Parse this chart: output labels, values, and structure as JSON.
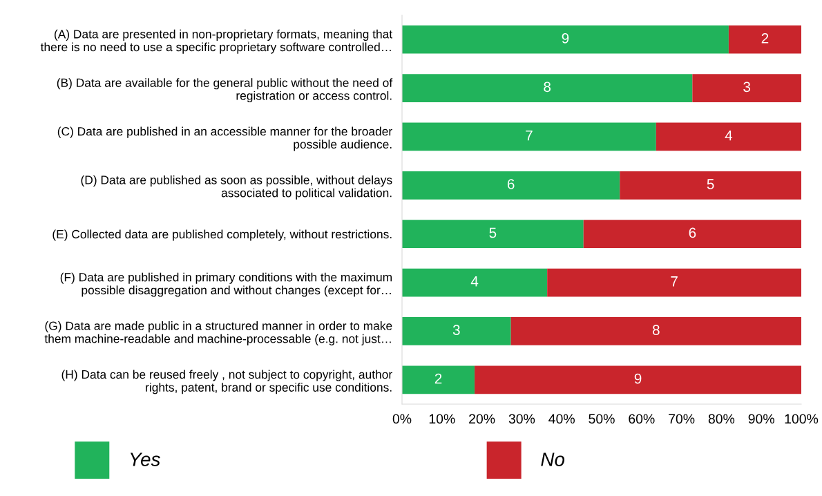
{
  "chart_data": {
    "type": "bar",
    "orientation": "horizontal",
    "stacked": true,
    "categories": [
      "(A) Data are presented in non-proprietary formats, meaning that\nthere is no need to use a specific proprietary software controlled…",
      "(B) Data are available for the general public without the need of\nregistration or access control.",
      "(C) Data are published in an accessible manner for the broader\npossible audience.",
      "(D) Data are published as soon as possible, without delays\nassociated to political validation.",
      "(E) Collected data are published completely, without restrictions.",
      "(F) Data are published in primary conditions with the maximum\npossible disaggregation and without changes (except for…",
      "(G) Data are made public in a structured manner in order to make\nthem machine-readable and machine-processable (e.g. not just…",
      "(H) Data can be reused freely , not subject to copyright, author\nrights, patent, brand or specific use conditions."
    ],
    "series": [
      {
        "name": "Yes",
        "color": "#21b35b",
        "values": [
          9,
          8,
          7,
          6,
          5,
          4,
          3,
          2
        ]
      },
      {
        "name": "No",
        "color": "#c9252c",
        "values": [
          2,
          3,
          4,
          5,
          6,
          7,
          8,
          9
        ]
      }
    ],
    "data_labels": true,
    "xlim": [
      0,
      11
    ],
    "tick_labels": "y",
    "x2lim": [
      0,
      100
    ],
    "x2ticks": [
      {
        "value": 0,
        "label": "0%"
      },
      {
        "value": 10,
        "label": "10%"
      },
      {
        "value": 20,
        "label": "20%"
      },
      {
        "value": 30,
        "label": "30%"
      },
      {
        "value": 40,
        "label": "40%"
      },
      {
        "value": 50,
        "label": "50%"
      },
      {
        "value": 60,
        "label": "60%"
      },
      {
        "value": 70,
        "label": "70%"
      },
      {
        "value": 80,
        "label": "80%"
      },
      {
        "value": 90,
        "label": "90%"
      },
      {
        "value": 100,
        "label": "100%"
      }
    ],
    "grid": false,
    "legend": "bottom"
  }
}
